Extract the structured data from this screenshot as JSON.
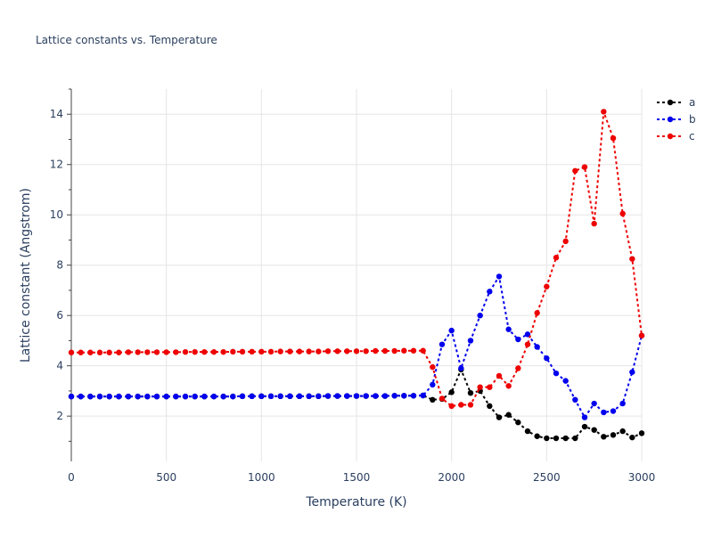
{
  "chart_data": {
    "type": "line",
    "title": "Lattice constants vs. Temperature",
    "xlabel": "Temperature (K)",
    "ylabel": "Lattice constant (Angstrom)",
    "xlim": [
      0,
      3000
    ],
    "ylim": [
      0.2,
      15
    ],
    "x_ticks": [
      "0",
      "500",
      "1000",
      "1500",
      "2000",
      "2500",
      "3000"
    ],
    "y_ticks": [
      "2",
      "4",
      "6",
      "8",
      "10",
      "12",
      "14"
    ],
    "grid": true,
    "legend_position": "top-right",
    "x": [
      0,
      50,
      100,
      150,
      200,
      250,
      300,
      350,
      400,
      450,
      500,
      550,
      600,
      650,
      700,
      750,
      800,
      850,
      900,
      950,
      1000,
      1050,
      1100,
      1150,
      1200,
      1250,
      1300,
      1350,
      1400,
      1450,
      1500,
      1550,
      1600,
      1650,
      1700,
      1750,
      1800,
      1850,
      1900,
      1950,
      2000,
      2050,
      2100,
      2150,
      2200,
      2250,
      2300,
      2350,
      2400,
      2450,
      2500,
      2550,
      2600,
      2650,
      2700,
      2750,
      2800,
      2850,
      2900,
      2950,
      3000
    ],
    "series": [
      {
        "name": "a",
        "color": "#000000",
        "values": [
          2.78,
          2.78,
          2.78,
          2.78,
          2.78,
          2.78,
          2.78,
          2.78,
          2.78,
          2.78,
          2.78,
          2.78,
          2.78,
          2.78,
          2.78,
          2.78,
          2.78,
          2.78,
          2.79,
          2.79,
          2.79,
          2.79,
          2.79,
          2.79,
          2.79,
          2.79,
          2.79,
          2.8,
          2.8,
          2.8,
          2.8,
          2.8,
          2.8,
          2.8,
          2.81,
          2.81,
          2.81,
          2.82,
          2.65,
          2.68,
          2.95,
          3.85,
          2.92,
          3.0,
          2.4,
          1.95,
          2.05,
          1.75,
          1.4,
          1.2,
          1.12,
          1.12,
          1.12,
          1.12,
          1.58,
          1.45,
          1.18,
          1.25,
          1.4,
          1.15,
          1.32
        ]
      },
      {
        "name": "b",
        "color": "#0000ee",
        "values": [
          2.78,
          2.78,
          2.78,
          2.78,
          2.78,
          2.78,
          2.78,
          2.78,
          2.78,
          2.78,
          2.78,
          2.78,
          2.78,
          2.78,
          2.78,
          2.78,
          2.78,
          2.78,
          2.79,
          2.79,
          2.79,
          2.79,
          2.79,
          2.79,
          2.79,
          2.79,
          2.79,
          2.8,
          2.8,
          2.8,
          2.8,
          2.8,
          2.8,
          2.8,
          2.81,
          2.81,
          2.81,
          2.82,
          3.25,
          4.85,
          5.4,
          3.9,
          5.0,
          6.0,
          6.95,
          7.55,
          5.45,
          5.05,
          5.25,
          4.75,
          4.3,
          3.7,
          3.4,
          2.65,
          1.95,
          2.5,
          2.15,
          2.2,
          2.5,
          3.75,
          5.2
        ]
      },
      {
        "name": "c",
        "color": "#ee0000",
        "values": [
          4.53,
          4.53,
          4.53,
          4.53,
          4.53,
          4.53,
          4.54,
          4.54,
          4.54,
          4.54,
          4.54,
          4.54,
          4.55,
          4.55,
          4.55,
          4.55,
          4.55,
          4.56,
          4.56,
          4.56,
          4.56,
          4.56,
          4.57,
          4.57,
          4.57,
          4.57,
          4.57,
          4.58,
          4.58,
          4.58,
          4.58,
          4.58,
          4.59,
          4.59,
          4.59,
          4.6,
          4.6,
          4.6,
          3.95,
          2.7,
          2.4,
          2.45,
          2.45,
          3.15,
          3.15,
          3.6,
          3.2,
          3.9,
          4.85,
          6.1,
          7.15,
          8.3,
          8.95,
          11.75,
          11.9,
          9.65,
          14.1,
          13.05,
          10.05,
          8.25,
          5.2
        ]
      }
    ]
  }
}
